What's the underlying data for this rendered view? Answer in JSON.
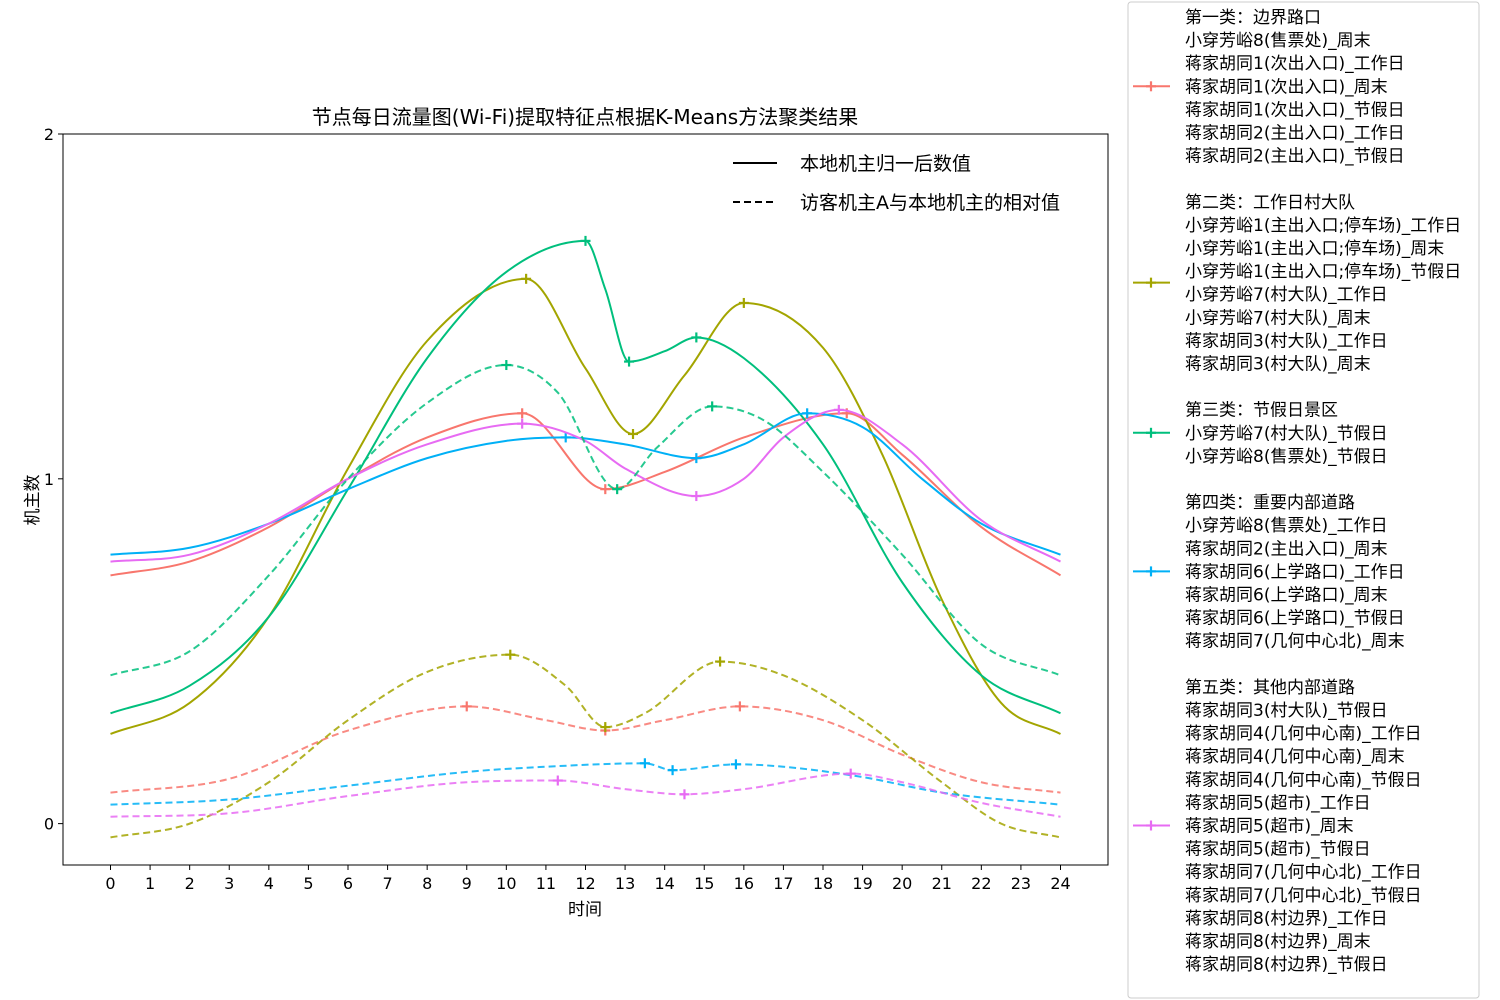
{
  "chart_data": {
    "type": "line",
    "title": "节点每日流量图(Wi-Fi)提取特征点根据K-Means方法聚类结果",
    "xlabel": "时间",
    "ylabel": "机主数",
    "xlim": [
      -1.2,
      25.2
    ],
    "ylim": [
      -0.12,
      2.0
    ],
    "xticks": [
      0,
      1,
      2,
      3,
      4,
      5,
      6,
      7,
      8,
      9,
      10,
      11,
      12,
      13,
      14,
      15,
      16,
      17,
      18,
      19,
      20,
      21,
      22,
      23,
      24
    ],
    "yticks": [
      0,
      1,
      2
    ],
    "style_legend": [
      {
        "label": "本地机主归一后数值",
        "dash": "solid"
      },
      {
        "label": "访客机主A与本地机主的相对值",
        "dash": "dashed"
      }
    ],
    "cluster_legend": [
      {
        "color": "#F8766D",
        "lines": [
          "第一类：边界路口",
          "小穿芳峪8(售票处)_周末",
          "蒋家胡同1(次出入口)_工作日",
          "蒋家胡同1(次出入口)_周末",
          "蒋家胡同1(次出入口)_节假日",
          "蒋家胡同2(主出入口)_工作日",
          "蒋家胡同2(主出入口)_节假日"
        ]
      },
      {
        "color": "#A3A500",
        "lines": [
          "第二类：工作日村大队",
          "小穿芳峪1(主出入口;停车场)_工作日",
          "小穿芳峪1(主出入口;停车场)_周末",
          "小穿芳峪1(主出入口;停车场)_节假日",
          "小穿芳峪7(村大队)_工作日",
          "小穿芳峪7(村大队)_周末",
          "蒋家胡同3(村大队)_工作日",
          "蒋家胡同3(村大队)_周末"
        ]
      },
      {
        "color": "#00BF7D",
        "lines": [
          "第三类：节假日景区",
          "小穿芳峪7(村大队)_节假日",
          "小穿芳峪8(售票处)_节假日"
        ]
      },
      {
        "color": "#00B0F6",
        "lines": [
          "第四类：重要内部道路",
          "小穿芳峪8(售票处)_工作日",
          "蒋家胡同2(主出入口)_周末",
          "蒋家胡同6(上学路口)_工作日",
          "蒋家胡同6(上学路口)_周末",
          "蒋家胡同6(上学路口)_节假日",
          "蒋家胡同7(几何中心北)_周末"
        ]
      },
      {
        "color": "#E76BF3",
        "lines": [
          "第五类：其他内部道路",
          "蒋家胡同3(村大队)_节假日",
          "蒋家胡同4(几何中心南)_工作日",
          "蒋家胡同4(几何中心南)_周末",
          "蒋家胡同4(几何中心南)_节假日",
          "蒋家胡同5(超市)_工作日",
          "蒋家胡同5(超市)_周末",
          "蒋家胡同5(超市)_节假日",
          "蒋家胡同7(几何中心北)_工作日",
          "蒋家胡同7(几何中心北)_节假日",
          "蒋家胡同8(村边界)_工作日",
          "蒋家胡同8(村边界)_周末",
          "蒋家胡同8(村边界)_节假日"
        ]
      }
    ],
    "series": [
      {
        "cluster": 1,
        "color": "#F8766D",
        "dash": "solid",
        "x": [
          0,
          2,
          4,
          6,
          8,
          10.4,
          12.5,
          14,
          16,
          18.6,
          20,
          22,
          24
        ],
        "y": [
          0.72,
          0.76,
          0.86,
          1.0,
          1.12,
          1.19,
          0.97,
          1.02,
          1.12,
          1.19,
          1.07,
          0.86,
          0.72
        ],
        "markers": [
          [
            10.4,
            1.19
          ],
          [
            12.5,
            0.97
          ],
          [
            18.6,
            1.19
          ]
        ]
      },
      {
        "cluster": 2,
        "color": "#A3A500",
        "dash": "solid",
        "x": [
          0,
          2,
          4,
          6,
          8,
          10.5,
          12,
          13.2,
          14.5,
          16,
          18,
          19.5,
          21,
          22.5,
          24
        ],
        "y": [
          0.26,
          0.35,
          0.6,
          1.03,
          1.4,
          1.58,
          1.32,
          1.13,
          1.3,
          1.51,
          1.38,
          1.07,
          0.65,
          0.35,
          0.26
        ],
        "markers": [
          [
            10.5,
            1.58
          ],
          [
            13.2,
            1.13
          ],
          [
            16,
            1.51
          ]
        ]
      },
      {
        "cluster": 3,
        "color": "#00BF7D",
        "dash": "solid",
        "x": [
          0,
          2,
          4,
          6,
          8,
          10,
          12,
          12.5,
          13.1,
          14,
          14.8,
          16,
          18,
          20,
          22,
          24
        ],
        "y": [
          0.32,
          0.4,
          0.6,
          0.97,
          1.35,
          1.6,
          1.69,
          1.55,
          1.34,
          1.37,
          1.41,
          1.35,
          1.1,
          0.7,
          0.43,
          0.32
        ],
        "markers": [
          [
            12,
            1.69
          ],
          [
            13.1,
            1.34
          ],
          [
            14.8,
            1.41
          ]
        ]
      },
      {
        "cluster": 4,
        "color": "#00B0F6",
        "dash": "solid",
        "x": [
          0,
          2,
          4,
          6,
          8,
          10,
          11.5,
          13,
          14.8,
          16,
          17.6,
          19,
          20.5,
          22,
          24
        ],
        "y": [
          0.78,
          0.8,
          0.87,
          0.97,
          1.06,
          1.11,
          1.12,
          1.1,
          1.06,
          1.1,
          1.19,
          1.15,
          1.0,
          0.87,
          0.78
        ],
        "markers": [
          [
            11.5,
            1.12
          ],
          [
            14.8,
            1.06
          ],
          [
            17.6,
            1.19
          ]
        ]
      },
      {
        "cluster": 5,
        "color": "#E76BF3",
        "dash": "solid",
        "x": [
          0,
          2,
          4,
          6,
          8,
          10.4,
          12,
          13,
          14.8,
          16,
          17,
          18.4,
          20,
          22,
          24
        ],
        "y": [
          0.76,
          0.78,
          0.87,
          1.0,
          1.1,
          1.16,
          1.11,
          1.03,
          0.95,
          1.0,
          1.12,
          1.2,
          1.1,
          0.88,
          0.76
        ],
        "markers": [
          [
            10.4,
            1.16
          ],
          [
            14.8,
            0.95
          ],
          [
            18.4,
            1.2
          ]
        ]
      },
      {
        "cluster": 1,
        "color": "#F8766D",
        "dash": "dashed",
        "x": [
          0,
          3,
          6,
          9,
          11,
          12.5,
          14,
          15.9,
          18,
          20,
          22,
          24
        ],
        "y": [
          0.09,
          0.13,
          0.27,
          0.34,
          0.3,
          0.27,
          0.3,
          0.34,
          0.3,
          0.2,
          0.12,
          0.09
        ],
        "markers": [
          [
            9,
            0.34
          ],
          [
            12.5,
            0.27
          ],
          [
            15.9,
            0.34
          ]
        ]
      },
      {
        "cluster": 2,
        "color": "#A3A500",
        "dash": "dashed",
        "x": [
          0,
          2,
          4,
          6,
          8,
          10.1,
          11.5,
          12.5,
          13.5,
          15.4,
          17,
          19,
          21,
          22.5,
          24
        ],
        "y": [
          -0.04,
          0.0,
          0.12,
          0.3,
          0.44,
          0.49,
          0.4,
          0.28,
          0.32,
          0.47,
          0.43,
          0.3,
          0.12,
          0.0,
          -0.04
        ],
        "markers": [
          [
            10.1,
            0.49
          ],
          [
            12.5,
            0.28
          ],
          [
            15.4,
            0.47
          ]
        ]
      },
      {
        "cluster": 3,
        "color": "#00BF7D",
        "dash": "dashed",
        "x": [
          0,
          2,
          4,
          6,
          8,
          10,
          11.3,
          12.8,
          13.8,
          15.2,
          16.5,
          18,
          20,
          22,
          24
        ],
        "y": [
          0.43,
          0.5,
          0.72,
          1.0,
          1.22,
          1.33,
          1.25,
          0.97,
          1.09,
          1.21,
          1.17,
          1.02,
          0.78,
          0.52,
          0.43
        ],
        "markers": [
          [
            10,
            1.33
          ],
          [
            12.8,
            0.97
          ],
          [
            15.2,
            1.21
          ]
        ]
      },
      {
        "cluster": 4,
        "color": "#00B0F6",
        "dash": "dashed",
        "x": [
          0,
          3,
          6,
          9,
          11,
          13.5,
          14.2,
          15.8,
          17,
          19,
          21,
          24
        ],
        "y": [
          0.055,
          0.07,
          0.11,
          0.15,
          0.165,
          0.175,
          0.155,
          0.172,
          0.165,
          0.135,
          0.09,
          0.055
        ],
        "markers": [
          [
            13.5,
            0.175
          ],
          [
            14.2,
            0.155
          ],
          [
            15.8,
            0.172
          ]
        ]
      },
      {
        "cluster": 5,
        "color": "#E76BF3",
        "dash": "dashed",
        "x": [
          0,
          3,
          6,
          9,
          11.3,
          13,
          14.5,
          16,
          18.7,
          20,
          22,
          24
        ],
        "y": [
          0.02,
          0.03,
          0.08,
          0.12,
          0.125,
          0.1,
          0.085,
          0.1,
          0.145,
          0.12,
          0.06,
          0.02
        ],
        "markers": [
          [
            11.3,
            0.125
          ],
          [
            14.5,
            0.085
          ],
          [
            18.7,
            0.145
          ]
        ]
      }
    ]
  }
}
